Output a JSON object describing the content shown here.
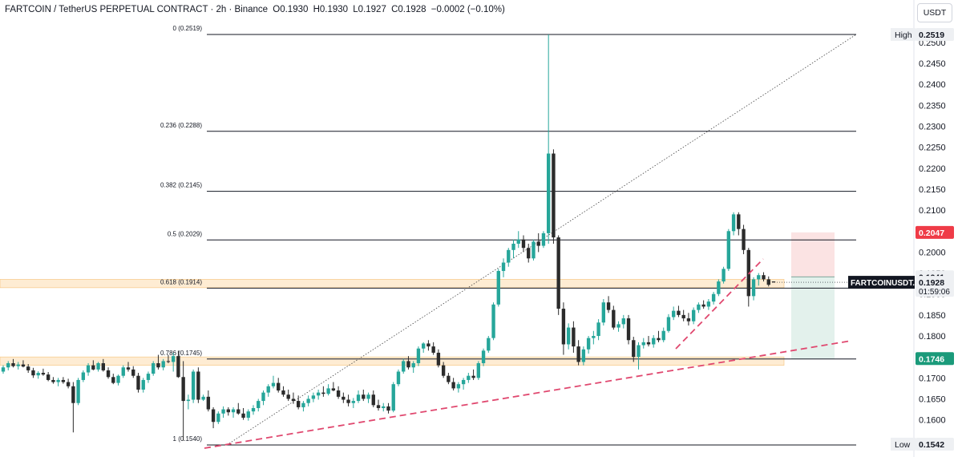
{
  "header": {
    "symbol": "FARTCOIN / TetherUS PERPETUAL CONTRACT · 2h · Binance",
    "open": "O0.1930",
    "high": "H0.1930",
    "low": "L0.1927",
    "close": "C0.1928",
    "change": "−0.0002 (−0.10%)"
  },
  "currency_label": "USDT",
  "colors": {
    "up": "#26a69a",
    "down": "#2b2b2b",
    "zone": "#fde5c4",
    "trend": "#e0486f",
    "fib": "#131722",
    "stop": "#fbe3e3",
    "target": "#e3f1ec",
    "tag_red": "#ef3b47",
    "tag_green": "#1a9a7a",
    "tag_dark": "#131722"
  },
  "chart_data": {
    "type": "candlestick",
    "symbol": "FARTCOINUSDT.P",
    "timeframe": "2h",
    "y_axis": {
      "ylim": [
        0.154,
        0.253
      ],
      "ticks": [
        "0.2500",
        "0.2450",
        "0.2400",
        "0.2350",
        "0.2300",
        "0.2250",
        "0.2200",
        "0.2150",
        "0.2100",
        "0.2050",
        "0.2000",
        "0.1950",
        "0.1900",
        "0.1850",
        "0.1800",
        "0.1750",
        "0.1700",
        "0.1650",
        "0.1600"
      ]
    },
    "fib_levels": [
      {
        "ratio": 0,
        "price": 0.2519,
        "label": "0 (0.2519)"
      },
      {
        "ratio": 0.236,
        "price": 0.2288,
        "label": "0.236 (0.2288)"
      },
      {
        "ratio": 0.382,
        "price": 0.2145,
        "label": "0.382 (0.2145)"
      },
      {
        "ratio": 0.5,
        "price": 0.2029,
        "label": "0.5 (0.2029)"
      },
      {
        "ratio": 0.618,
        "price": 0.1914,
        "label": "0.618 (0.1914)"
      },
      {
        "ratio": 0.786,
        "price": 0.1745,
        "label": "0.786 (0.1745)"
      },
      {
        "ratio": 1,
        "price": 0.154,
        "label": "1 (0.1540)"
      }
    ],
    "zones": [
      {
        "from": 0.1915,
        "to": 0.1935
      },
      {
        "from": 0.173,
        "to": 0.175
      }
    ],
    "trade_box": {
      "entry": 0.1941,
      "stop": 0.2047,
      "target": 0.1746
    },
    "price_tags": [
      {
        "label": "High",
        "value": "0.2519"
      },
      {
        "label": "Low",
        "value": "0.1542"
      },
      {
        "value": "0.2047"
      },
      {
        "value": "0.1941"
      },
      {
        "label": "FARTCOINUSDT.P",
        "value": "0.1928",
        "sub": "01:59:06"
      },
      {
        "value": "0.1746"
      }
    ],
    "candles": [
      [
        0.1715,
        0.173,
        0.171,
        0.1725
      ],
      [
        0.1725,
        0.174,
        0.1718,
        0.1735
      ],
      [
        0.1735,
        0.1745,
        0.1725,
        0.1728
      ],
      [
        0.1728,
        0.1738,
        0.172,
        0.1732
      ],
      [
        0.1732,
        0.1742,
        0.1725,
        0.1727
      ],
      [
        0.1727,
        0.1733,
        0.1712,
        0.1718
      ],
      [
        0.1718,
        0.1724,
        0.17,
        0.1706
      ],
      [
        0.1706,
        0.1716,
        0.1698,
        0.1712
      ],
      [
        0.1712,
        0.1722,
        0.1705,
        0.1708
      ],
      [
        0.1708,
        0.1714,
        0.1692,
        0.1695
      ],
      [
        0.1695,
        0.1702,
        0.1686,
        0.169
      ],
      [
        0.169,
        0.17,
        0.168,
        0.1695
      ],
      [
        0.1695,
        0.1702,
        0.1686,
        0.169
      ],
      [
        0.169,
        0.1698,
        0.1675,
        0.168
      ],
      [
        0.168,
        0.169,
        0.157,
        0.164
      ],
      [
        0.164,
        0.17,
        0.1635,
        0.1695
      ],
      [
        0.1695,
        0.1718,
        0.169,
        0.1713
      ],
      [
        0.1713,
        0.1735,
        0.1705,
        0.173
      ],
      [
        0.173,
        0.1742,
        0.1718,
        0.172
      ],
      [
        0.172,
        0.1738,
        0.1715,
        0.1735
      ],
      [
        0.1735,
        0.1745,
        0.1715,
        0.1718
      ],
      [
        0.1718,
        0.1725,
        0.1698,
        0.1702
      ],
      [
        0.1702,
        0.171,
        0.1685,
        0.1688
      ],
      [
        0.1688,
        0.1708,
        0.1682,
        0.1705
      ],
      [
        0.1705,
        0.173,
        0.17,
        0.1725
      ],
      [
        0.1725,
        0.1738,
        0.1715,
        0.172
      ],
      [
        0.172,
        0.1728,
        0.17,
        0.1705
      ],
      [
        0.1705,
        0.1712,
        0.1665,
        0.1672
      ],
      [
        0.1672,
        0.17,
        0.1665,
        0.1695
      ],
      [
        0.1695,
        0.1715,
        0.1688,
        0.171
      ],
      [
        0.171,
        0.174,
        0.1705,
        0.1735
      ],
      [
        0.1735,
        0.1755,
        0.172,
        0.1725
      ],
      [
        0.1725,
        0.1745,
        0.1718,
        0.174
      ],
      [
        0.174,
        0.1755,
        0.1735,
        0.1738
      ],
      [
        0.1738,
        0.176,
        0.1715,
        0.1752
      ],
      [
        0.1752,
        0.1765,
        0.17,
        0.1702
      ],
      [
        0.1702,
        0.174,
        0.155,
        0.1645
      ],
      [
        0.1645,
        0.166,
        0.1625,
        0.1648
      ],
      [
        0.1648,
        0.172,
        0.164,
        0.1715
      ],
      [
        0.1715,
        0.1725,
        0.164,
        0.1648
      ],
      [
        0.1648,
        0.166,
        0.1645,
        0.1655
      ],
      [
        0.1655,
        0.167,
        0.162,
        0.1625
      ],
      [
        0.1625,
        0.163,
        0.158,
        0.1595
      ],
      [
        0.1595,
        0.162,
        0.159,
        0.1615
      ],
      [
        0.1615,
        0.1632,
        0.1605,
        0.1625
      ],
      [
        0.1625,
        0.163,
        0.161,
        0.1618
      ],
      [
        0.1618,
        0.163,
        0.1605,
        0.1625
      ],
      [
        0.1625,
        0.164,
        0.1612,
        0.1615
      ],
      [
        0.1615,
        0.1628,
        0.16,
        0.1605
      ],
      [
        0.1605,
        0.1625,
        0.1598,
        0.162
      ],
      [
        0.162,
        0.1635,
        0.1612,
        0.1628
      ],
      [
        0.1628,
        0.165,
        0.162,
        0.1645
      ],
      [
        0.1645,
        0.167,
        0.1635,
        0.1665
      ],
      [
        0.1665,
        0.1685,
        0.1655,
        0.168
      ],
      [
        0.168,
        0.1705,
        0.1675,
        0.1688
      ],
      [
        0.1688,
        0.17,
        0.1665,
        0.167
      ],
      [
        0.167,
        0.168,
        0.1655,
        0.166
      ],
      [
        0.166,
        0.1672,
        0.1645,
        0.165
      ],
      [
        0.165,
        0.1665,
        0.1638,
        0.1645
      ],
      [
        0.1645,
        0.1658,
        0.1625,
        0.163
      ],
      [
        0.163,
        0.1645,
        0.162,
        0.164
      ],
      [
        0.164,
        0.1658,
        0.1632,
        0.165
      ],
      [
        0.165,
        0.1665,
        0.1642,
        0.1658
      ],
      [
        0.1658,
        0.1672,
        0.1648,
        0.1665
      ],
      [
        0.1665,
        0.168,
        0.1655,
        0.1662
      ],
      [
        0.1662,
        0.1685,
        0.1658,
        0.1675
      ],
      [
        0.1675,
        0.169,
        0.1668,
        0.167
      ],
      [
        0.167,
        0.168,
        0.165,
        0.1655
      ],
      [
        0.1655,
        0.1665,
        0.164,
        0.1648
      ],
      [
        0.1648,
        0.166,
        0.1632,
        0.164
      ],
      [
        0.164,
        0.1652,
        0.1628,
        0.1645
      ],
      [
        0.1645,
        0.167,
        0.164,
        0.166
      ],
      [
        0.166,
        0.1672,
        0.1645,
        0.165
      ],
      [
        0.165,
        0.1665,
        0.164,
        0.166
      ],
      [
        0.166,
        0.167,
        0.163,
        0.1635
      ],
      [
        0.1635,
        0.1648,
        0.1622,
        0.1628
      ],
      [
        0.1628,
        0.164,
        0.162,
        0.1632
      ],
      [
        0.1632,
        0.164,
        0.1615,
        0.1622
      ],
      [
        0.1622,
        0.169,
        0.1618,
        0.1685
      ],
      [
        0.1685,
        0.172,
        0.168,
        0.1715
      ],
      [
        0.1715,
        0.1745,
        0.171,
        0.174
      ],
      [
        0.174,
        0.1752,
        0.172,
        0.1725
      ],
      [
        0.1725,
        0.174,
        0.1712,
        0.1735
      ],
      [
        0.1735,
        0.1775,
        0.1728,
        0.177
      ],
      [
        0.177,
        0.1785,
        0.176,
        0.1782
      ],
      [
        0.1782,
        0.179,
        0.1765,
        0.1775
      ],
      [
        0.1775,
        0.1785,
        0.1755,
        0.176
      ],
      [
        0.176,
        0.1768,
        0.1725,
        0.173
      ],
      [
        0.173,
        0.1738,
        0.17,
        0.1705
      ],
      [
        0.1705,
        0.1712,
        0.1685,
        0.169
      ],
      [
        0.169,
        0.17,
        0.167,
        0.1675
      ],
      [
        0.1675,
        0.169,
        0.1665,
        0.1685
      ],
      [
        0.1685,
        0.17,
        0.1672,
        0.1695
      ],
      [
        0.1695,
        0.1712,
        0.1688,
        0.1705
      ],
      [
        0.1705,
        0.172,
        0.1695,
        0.17
      ],
      [
        0.17,
        0.174,
        0.1695,
        0.1735
      ],
      [
        0.1735,
        0.177,
        0.1728,
        0.1765
      ],
      [
        0.1765,
        0.18,
        0.176,
        0.1795
      ],
      [
        0.1795,
        0.188,
        0.179,
        0.1875
      ],
      [
        0.1875,
        0.196,
        0.187,
        0.1955
      ],
      [
        0.1955,
        0.1985,
        0.194,
        0.1975
      ],
      [
        0.1975,
        0.201,
        0.1965,
        0.2005
      ],
      [
        0.2005,
        0.203,
        0.1985,
        0.202
      ],
      [
        0.202,
        0.205,
        0.201,
        0.203
      ],
      [
        0.203,
        0.204,
        0.2,
        0.201
      ],
      [
        0.201,
        0.202,
        0.1975,
        0.1985
      ],
      [
        0.1985,
        0.203,
        0.198,
        0.2025
      ],
      [
        0.2025,
        0.2045,
        0.2,
        0.2015
      ],
      [
        0.2015,
        0.205,
        0.201,
        0.2045
      ],
      [
        0.2045,
        0.2519,
        0.202,
        0.2235
      ],
      [
        0.2235,
        0.2245,
        0.202,
        0.2035
      ],
      [
        0.2035,
        0.204,
        0.185,
        0.1865
      ],
      [
        0.1865,
        0.188,
        0.1755,
        0.178
      ],
      [
        0.178,
        0.183,
        0.1768,
        0.182
      ],
      [
        0.182,
        0.1835,
        0.176,
        0.1775
      ],
      [
        0.1775,
        0.179,
        0.173,
        0.1738
      ],
      [
        0.1738,
        0.1775,
        0.173,
        0.1768
      ],
      [
        0.1768,
        0.18,
        0.1758,
        0.1795
      ],
      [
        0.1795,
        0.1812,
        0.178,
        0.18
      ],
      [
        0.18,
        0.184,
        0.179,
        0.1832
      ],
      [
        0.1832,
        0.1888,
        0.1825,
        0.188
      ],
      [
        0.188,
        0.1895,
        0.1855,
        0.1862
      ],
      [
        0.1862,
        0.1872,
        0.1815,
        0.182
      ],
      [
        0.182,
        0.1835,
        0.181,
        0.1828
      ],
      [
        0.1828,
        0.185,
        0.1818,
        0.1842
      ],
      [
        0.1842,
        0.185,
        0.178,
        0.179
      ],
      [
        0.179,
        0.1798,
        0.1738,
        0.175
      ],
      [
        0.175,
        0.1785,
        0.172,
        0.1778
      ],
      [
        0.1778,
        0.1795,
        0.177,
        0.1785
      ],
      [
        0.1785,
        0.18,
        0.1775,
        0.178
      ],
      [
        0.178,
        0.1802,
        0.1772,
        0.1795
      ],
      [
        0.1795,
        0.1812,
        0.1785,
        0.179
      ],
      [
        0.179,
        0.182,
        0.1785,
        0.1812
      ],
      [
        0.1812,
        0.1852,
        0.1808,
        0.1845
      ],
      [
        0.1845,
        0.187,
        0.1838,
        0.186
      ],
      [
        0.186,
        0.1872,
        0.1845,
        0.185
      ],
      [
        0.185,
        0.1862,
        0.1835,
        0.1842
      ],
      [
        0.1842,
        0.1855,
        0.1825,
        0.1835
      ],
      [
        0.1835,
        0.1868,
        0.1828,
        0.1862
      ],
      [
        0.1862,
        0.188,
        0.1855,
        0.1875
      ],
      [
        0.1875,
        0.1885,
        0.1865,
        0.187
      ],
      [
        0.187,
        0.1888,
        0.1862,
        0.1882
      ],
      [
        0.1882,
        0.1905,
        0.1875,
        0.19
      ],
      [
        0.19,
        0.1935,
        0.1895,
        0.193
      ],
      [
        0.193,
        0.1965,
        0.1925,
        0.196
      ],
      [
        0.196,
        0.2055,
        0.1955,
        0.205
      ],
      [
        0.205,
        0.2095,
        0.204,
        0.209
      ],
      [
        0.209,
        0.2095,
        0.204,
        0.2055
      ],
      [
        0.2055,
        0.2065,
        0.1995,
        0.2005
      ],
      [
        0.2005,
        0.201,
        0.187,
        0.1895
      ],
      [
        0.1895,
        0.194,
        0.1885,
        0.1935
      ],
      [
        0.1935,
        0.195,
        0.192,
        0.1945
      ],
      [
        0.1945,
        0.1952,
        0.193,
        0.1935
      ],
      [
        0.1935,
        0.1942,
        0.1918,
        0.1922
      ],
      [
        0.193,
        0.193,
        0.1927,
        0.1928
      ]
    ]
  }
}
